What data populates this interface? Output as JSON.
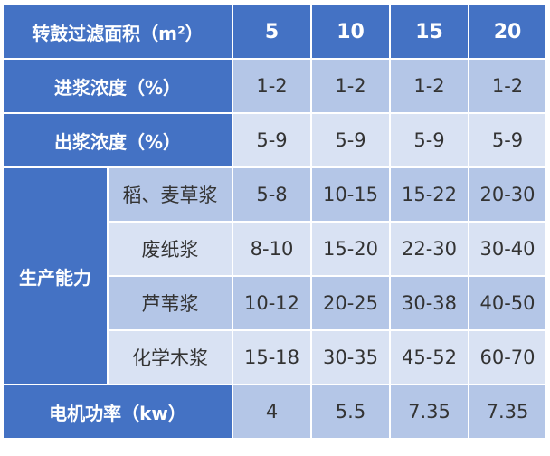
{
  "colors": {
    "header": "#4472C4",
    "row_dark": "#B4C6E7",
    "row_light": "#D9E2F3"
  },
  "header": {
    "label": "转鼓过滤面积（m²）",
    "areas": [
      "5",
      "10",
      "15",
      "20"
    ]
  },
  "rows": [
    {
      "label": "进浆浓度（%）",
      "values": [
        "1-2",
        "1-2",
        "1-2",
        "1-2"
      ]
    },
    {
      "label": "出浆浓度（%）",
      "values": [
        "5-9",
        "5-9",
        "5-9",
        "5-9"
      ]
    }
  ],
  "capacity": {
    "label": "生产能力",
    "items": [
      {
        "label": "稻、麦草浆",
        "values": [
          "5-8",
          "10-15",
          "15-22",
          "20-30"
        ]
      },
      {
        "label": "废纸浆",
        "values": [
          "8-10",
          "15-20",
          "22-30",
          "30-40"
        ]
      },
      {
        "label": "芦苇浆",
        "values": [
          "10-12",
          "20-25",
          "30-38",
          "40-50"
        ]
      },
      {
        "label": "化学木浆",
        "values": [
          "15-18",
          "30-35",
          "45-52",
          "60-70"
        ]
      }
    ]
  },
  "power": {
    "label": "电机功率（kw）",
    "values": [
      "4",
      "5.5",
      "7.35",
      "7.35"
    ]
  }
}
